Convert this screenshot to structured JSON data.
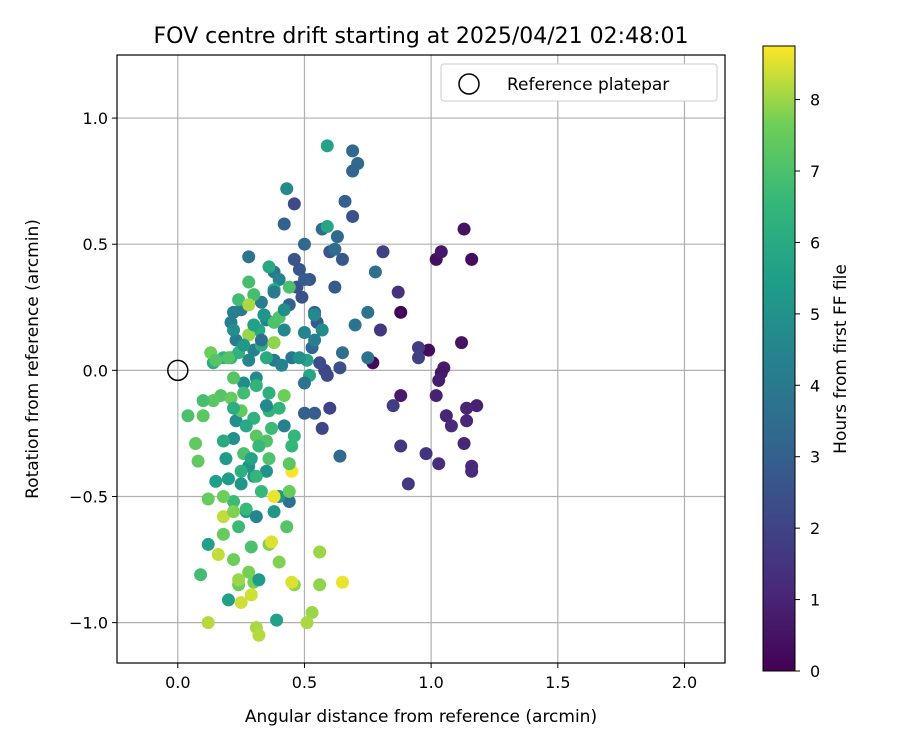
{
  "chart_data": {
    "type": "scatter",
    "title": "FOV centre drift starting at 2025/04/21 02:48:01",
    "xlabel": "Angular distance from reference (arcmin)",
    "ylabel": "Rotation from reference (arcmin)",
    "xlim": [
      -0.24,
      2.16
    ],
    "ylim": [
      -1.16,
      1.25
    ],
    "xticks": [
      0.0,
      0.5,
      1.0,
      1.5,
      2.0
    ],
    "xtick_labels": [
      "0.0",
      "0.5",
      "1.0",
      "1.5",
      "2.0"
    ],
    "yticks": [
      -1.0,
      -0.5,
      0.0,
      0.5,
      1.0
    ],
    "ytick_labels": [
      "−1.0",
      "−0.5",
      "0.0",
      "0.5",
      "1.0"
    ],
    "grid": true,
    "legend": {
      "placement": "top-right",
      "entries": [
        "Reference platepar"
      ]
    },
    "reference_point": {
      "x": 0.0,
      "y": 0.0,
      "label": "Reference platepar",
      "marker": "open-circle"
    },
    "colorbar": {
      "label": "Hours from first FF file",
      "colormap": "viridis",
      "range": [
        0,
        8.75
      ],
      "ticks": [
        0,
        1,
        2,
        3,
        4,
        5,
        6,
        7,
        8
      ],
      "tick_labels": [
        "0",
        "1",
        "2",
        "3",
        "4",
        "5",
        "6",
        "7",
        "8"
      ]
    },
    "points": [
      {
        "x": 0.88,
        "y": 0.23,
        "c": 0.1
      },
      {
        "x": 0.77,
        "y": 0.03,
        "c": 0.2
      },
      {
        "x": 1.16,
        "y": 0.44,
        "c": 0.3
      },
      {
        "x": 1.13,
        "y": 0.56,
        "c": 0.5
      },
      {
        "x": 1.02,
        "y": 0.44,
        "c": 0.4
      },
      {
        "x": 1.04,
        "y": 0.47,
        "c": 0.6
      },
      {
        "x": 0.99,
        "y": 0.08,
        "c": 0.3
      },
      {
        "x": 1.12,
        "y": 0.11,
        "c": 0.5
      },
      {
        "x": 1.05,
        "y": 0.01,
        "c": 0.7
      },
      {
        "x": 1.04,
        "y": -0.01,
        "c": 0.6
      },
      {
        "x": 1.03,
        "y": -0.04,
        "c": 0.8
      },
      {
        "x": 1.02,
        "y": -0.1,
        "c": 0.9
      },
      {
        "x": 0.88,
        "y": -0.1,
        "c": 0.7
      },
      {
        "x": 1.18,
        "y": -0.14,
        "c": 0.9
      },
      {
        "x": 1.14,
        "y": -0.15,
        "c": 1.0
      },
      {
        "x": 1.14,
        "y": -0.2,
        "c": 1.1
      },
      {
        "x": 1.06,
        "y": -0.18,
        "c": 1.0
      },
      {
        "x": 1.08,
        "y": -0.22,
        "c": 1.2
      },
      {
        "x": 1.13,
        "y": -0.29,
        "c": 1.0
      },
      {
        "x": 1.16,
        "y": -0.38,
        "c": 1.1
      },
      {
        "x": 1.16,
        "y": -0.4,
        "c": 1.2
      },
      {
        "x": 1.03,
        "y": -0.37,
        "c": 1.3
      },
      {
        "x": 0.98,
        "y": -0.33,
        "c": 1.5
      },
      {
        "x": 0.88,
        "y": -0.3,
        "c": 1.6
      },
      {
        "x": 0.91,
        "y": -0.45,
        "c": 1.7
      },
      {
        "x": 0.85,
        "y": -0.14,
        "c": 1.8
      },
      {
        "x": 0.95,
        "y": 0.09,
        "c": 1.8
      },
      {
        "x": 0.95,
        "y": 0.05,
        "c": 1.9
      },
      {
        "x": 0.87,
        "y": 0.31,
        "c": 1.4
      },
      {
        "x": 0.81,
        "y": 0.47,
        "c": 1.9
      },
      {
        "x": 0.8,
        "y": 0.16,
        "c": 1.6
      },
      {
        "x": 0.58,
        "y": 0.0,
        "c": 2.0
      },
      {
        "x": 0.59,
        "y": -0.02,
        "c": 2.2
      },
      {
        "x": 0.56,
        "y": 0.03,
        "c": 2.3
      },
      {
        "x": 0.57,
        "y": -0.23,
        "c": 2.1
      },
      {
        "x": 0.6,
        "y": -0.15,
        "c": 2.0
      },
      {
        "x": 0.64,
        "y": 0.01,
        "c": 2.4
      },
      {
        "x": 0.46,
        "y": 0.66,
        "c": 2.2
      },
      {
        "x": 0.49,
        "y": 0.29,
        "c": 2.5
      },
      {
        "x": 0.47,
        "y": 0.33,
        "c": 2.5
      },
      {
        "x": 0.48,
        "y": 0.4,
        "c": 2.6
      },
      {
        "x": 0.46,
        "y": 0.44,
        "c": 2.6
      },
      {
        "x": 0.6,
        "y": 0.47,
        "c": 2.6
      },
      {
        "x": 0.69,
        "y": 0.61,
        "c": 2.5
      },
      {
        "x": 0.65,
        "y": 0.44,
        "c": 2.7
      },
      {
        "x": 0.62,
        "y": 0.33,
        "c": 2.8
      },
      {
        "x": 0.55,
        "y": 0.19,
        "c": 2.8
      },
      {
        "x": 0.54,
        "y": 0.23,
        "c": 3.0
      },
      {
        "x": 0.52,
        "y": 0.36,
        "c": 2.7
      },
      {
        "x": 0.5,
        "y": 0.36,
        "c": 2.9
      },
      {
        "x": 0.54,
        "y": -0.17,
        "c": 2.9
      },
      {
        "x": 0.5,
        "y": -0.17,
        "c": 3.0
      },
      {
        "x": 0.53,
        "y": 0.09,
        "c": 3.2
      },
      {
        "x": 0.44,
        "y": 0.26,
        "c": 3.1
      },
      {
        "x": 0.42,
        "y": 0.58,
        "c": 3.0
      },
      {
        "x": 0.66,
        "y": 0.67,
        "c": 3.0
      },
      {
        "x": 0.69,
        "y": 0.87,
        "c": 3.3
      },
      {
        "x": 0.71,
        "y": 0.82,
        "c": 3.3
      },
      {
        "x": 0.69,
        "y": 0.79,
        "c": 3.2
      },
      {
        "x": 0.5,
        "y": 0.5,
        "c": 3.3
      },
      {
        "x": 0.57,
        "y": 0.56,
        "c": 3.5
      },
      {
        "x": 0.63,
        "y": 0.53,
        "c": 3.4
      },
      {
        "x": 0.64,
        "y": -0.34,
        "c": 3.4
      },
      {
        "x": 0.78,
        "y": 0.39,
        "c": 3.6
      },
      {
        "x": 0.75,
        "y": 0.23,
        "c": 3.7
      },
      {
        "x": 0.7,
        "y": 0.18,
        "c": 3.8
      },
      {
        "x": 0.62,
        "y": 0.48,
        "c": 3.5
      },
      {
        "x": 0.65,
        "y": 0.07,
        "c": 3.6
      },
      {
        "x": 0.75,
        "y": 0.05,
        "c": 3.7
      },
      {
        "x": 0.44,
        "y": -0.52,
        "c": 3.6
      },
      {
        "x": 0.28,
        "y": 0.45,
        "c": 3.8
      },
      {
        "x": 0.38,
        "y": 0.39,
        "c": 3.9
      },
      {
        "x": 0.45,
        "y": 0.05,
        "c": 3.9
      },
      {
        "x": 0.38,
        "y": 0.04,
        "c": 4.0
      },
      {
        "x": 0.23,
        "y": 0.12,
        "c": 4.1
      },
      {
        "x": 0.25,
        "y": 0.24,
        "c": 4.0
      },
      {
        "x": 0.22,
        "y": 0.23,
        "c": 4.2
      },
      {
        "x": 0.21,
        "y": 0.19,
        "c": 4.3
      },
      {
        "x": 0.33,
        "y": 0.27,
        "c": 4.2
      },
      {
        "x": 0.35,
        "y": 0.2,
        "c": 4.4
      },
      {
        "x": 0.3,
        "y": 0.08,
        "c": 4.3
      },
      {
        "x": 0.28,
        "y": 0.04,
        "c": 4.5
      },
      {
        "x": 0.4,
        "y": 0.36,
        "c": 4.4
      },
      {
        "x": 0.42,
        "y": 0.16,
        "c": 4.6
      },
      {
        "x": 0.5,
        "y": 0.15,
        "c": 4.5
      },
      {
        "x": 0.43,
        "y": 0.72,
        "c": 4.7
      },
      {
        "x": 0.54,
        "y": 0.22,
        "c": 4.6
      },
      {
        "x": 0.57,
        "y": 0.16,
        "c": 4.8
      },
      {
        "x": 0.31,
        "y": -0.03,
        "c": 4.7
      },
      {
        "x": 0.26,
        "y": -0.05,
        "c": 4.8
      },
      {
        "x": 0.23,
        "y": -0.2,
        "c": 4.9
      },
      {
        "x": 0.22,
        "y": -0.27,
        "c": 4.9
      },
      {
        "x": 0.28,
        "y": -0.38,
        "c": 5.0
      },
      {
        "x": 0.3,
        "y": -0.42,
        "c": 5.1
      },
      {
        "x": 0.35,
        "y": -0.4,
        "c": 5.0
      },
      {
        "x": 0.4,
        "y": -0.5,
        "c": 5.1
      },
      {
        "x": 0.38,
        "y": -0.56,
        "c": 5.2
      },
      {
        "x": 0.27,
        "y": -0.56,
        "c": 5.3
      },
      {
        "x": 0.25,
        "y": -0.45,
        "c": 5.2
      },
      {
        "x": 0.2,
        "y": -0.43,
        "c": 5.4
      },
      {
        "x": 0.19,
        "y": -0.35,
        "c": 5.3
      },
      {
        "x": 0.15,
        "y": -0.44,
        "c": 5.5
      },
      {
        "x": 0.12,
        "y": -0.69,
        "c": 5.5
      },
      {
        "x": 0.2,
        "y": -0.91,
        "c": 5.6
      },
      {
        "x": 0.39,
        "y": -0.99,
        "c": 5.6
      },
      {
        "x": 0.59,
        "y": 0.89,
        "c": 5.7
      },
      {
        "x": 0.59,
        "y": 0.57,
        "c": 5.8
      },
      {
        "x": 0.51,
        "y": 0.04,
        "c": 5.7
      },
      {
        "x": 0.52,
        "y": -0.02,
        "c": 5.8
      },
      {
        "x": 0.38,
        "y": 0.32,
        "c": 5.9
      },
      {
        "x": 0.36,
        "y": 0.41,
        "c": 5.9
      },
      {
        "x": 0.32,
        "y": 0.16,
        "c": 6.0
      },
      {
        "x": 0.33,
        "y": 0.1,
        "c": 6.1
      },
      {
        "x": 0.35,
        "y": 0.05,
        "c": 6.0
      },
      {
        "x": 0.14,
        "y": 0.03,
        "c": 6.1
      },
      {
        "x": 0.18,
        "y": 0.05,
        "c": 6.2
      },
      {
        "x": 0.21,
        "y": 0.05,
        "c": 6.2
      },
      {
        "x": 0.24,
        "y": 0.07,
        "c": 6.3
      },
      {
        "x": 0.3,
        "y": -0.19,
        "c": 6.3
      },
      {
        "x": 0.36,
        "y": -0.16,
        "c": 6.4
      },
      {
        "x": 0.4,
        "y": -0.15,
        "c": 6.4
      },
      {
        "x": 0.46,
        "y": -0.26,
        "c": 6.5
      },
      {
        "x": 0.45,
        "y": -0.3,
        "c": 6.5
      },
      {
        "x": 0.31,
        "y": -0.42,
        "c": 6.5
      },
      {
        "x": 0.33,
        "y": -0.48,
        "c": 6.6
      },
      {
        "x": 0.27,
        "y": -0.55,
        "c": 6.6
      },
      {
        "x": 0.24,
        "y": -0.62,
        "c": 6.7
      },
      {
        "x": 0.22,
        "y": -0.52,
        "c": 6.7
      },
      {
        "x": 0.09,
        "y": -0.81,
        "c": 6.8
      },
      {
        "x": 0.24,
        "y": 0.28,
        "c": 6.8
      },
      {
        "x": 0.28,
        "y": 0.35,
        "c": 6.9
      },
      {
        "x": 0.3,
        "y": 0.3,
        "c": 6.9
      },
      {
        "x": 0.44,
        "y": 0.33,
        "c": 7.0
      },
      {
        "x": 0.38,
        "y": 0.19,
        "c": 7.0
      },
      {
        "x": 0.4,
        "y": 0.21,
        "c": 7.1
      },
      {
        "x": 0.2,
        "y": 0.05,
        "c": 7.1
      },
      {
        "x": 0.22,
        "y": -0.03,
        "c": 7.2
      },
      {
        "x": 0.17,
        "y": -0.1,
        "c": 7.2
      },
      {
        "x": 0.14,
        "y": -0.12,
        "c": 7.3
      },
      {
        "x": 0.1,
        "y": -0.18,
        "c": 7.3
      },
      {
        "x": 0.07,
        "y": -0.29,
        "c": 7.4
      },
      {
        "x": 0.08,
        "y": -0.36,
        "c": 7.4
      },
      {
        "x": 0.12,
        "y": -0.51,
        "c": 7.5
      },
      {
        "x": 0.18,
        "y": -0.65,
        "c": 7.5
      },
      {
        "x": 0.22,
        "y": -0.75,
        "c": 7.6
      },
      {
        "x": 0.24,
        "y": -0.85,
        "c": 7.6
      },
      {
        "x": 0.28,
        "y": -0.8,
        "c": 7.7
      },
      {
        "x": 0.3,
        "y": -0.84,
        "c": 7.7
      },
      {
        "x": 0.36,
        "y": -0.69,
        "c": 7.8
      },
      {
        "x": 0.4,
        "y": -0.76,
        "c": 7.8
      },
      {
        "x": 0.46,
        "y": -0.85,
        "c": 7.9
      },
      {
        "x": 0.56,
        "y": -0.85,
        "c": 7.9
      },
      {
        "x": 0.56,
        "y": -0.72,
        "c": 8.0
      },
      {
        "x": 0.53,
        "y": -0.96,
        "c": 8.0
      },
      {
        "x": 0.51,
        "y": -1.0,
        "c": 8.1
      },
      {
        "x": 0.31,
        "y": -1.02,
        "c": 8.1
      },
      {
        "x": 0.32,
        "y": -1.05,
        "c": 8.2
      },
      {
        "x": 0.12,
        "y": -1.0,
        "c": 8.2
      },
      {
        "x": 0.16,
        "y": -0.73,
        "c": 8.3
      },
      {
        "x": 0.18,
        "y": -0.58,
        "c": 8.3
      },
      {
        "x": 0.25,
        "y": -0.92,
        "c": 8.4
      },
      {
        "x": 0.29,
        "y": -0.89,
        "c": 8.4
      },
      {
        "x": 0.37,
        "y": -0.68,
        "c": 8.5
      },
      {
        "x": 0.45,
        "y": -0.84,
        "c": 8.5
      },
      {
        "x": 0.65,
        "y": -0.84,
        "c": 8.6
      },
      {
        "x": 0.38,
        "y": -0.5,
        "c": 8.6
      },
      {
        "x": 0.45,
        "y": -0.4,
        "c": 8.7
      },
      {
        "x": 0.28,
        "y": 0.26,
        "c": 8.1
      },
      {
        "x": 0.28,
        "y": 0.14,
        "c": 8.0
      },
      {
        "x": 0.38,
        "y": 0.11,
        "c": 7.9
      },
      {
        "x": 0.13,
        "y": 0.07,
        "c": 7.6
      },
      {
        "x": 0.15,
        "y": 0.04,
        "c": 7.2
      },
      {
        "x": 0.21,
        "y": -0.11,
        "c": 7.5
      },
      {
        "x": 0.25,
        "y": -0.16,
        "c": 7.4
      },
      {
        "x": 0.31,
        "y": -0.26,
        "c": 7.3
      },
      {
        "x": 0.35,
        "y": -0.28,
        "c": 7.1
      },
      {
        "x": 0.26,
        "y": -0.33,
        "c": 7.0
      },
      {
        "x": 0.36,
        "y": -0.35,
        "c": 7.1
      },
      {
        "x": 0.44,
        "y": -0.37,
        "c": 7.3
      },
      {
        "x": 0.44,
        "y": -0.48,
        "c": 7.5
      },
      {
        "x": 0.18,
        "y": -0.5,
        "c": 7.6
      },
      {
        "x": 0.22,
        "y": -0.56,
        "c": 7.8
      },
      {
        "x": 0.43,
        "y": -0.62,
        "c": 7.2
      },
      {
        "x": 0.29,
        "y": -0.7,
        "c": 7.0
      },
      {
        "x": 0.24,
        "y": -0.83,
        "c": 8.0
      },
      {
        "x": 0.32,
        "y": -0.83,
        "c": 5.4
      },
      {
        "x": 0.04,
        "y": -0.18,
        "c": 7.0
      },
      {
        "x": 0.1,
        "y": -0.12,
        "c": 6.9
      },
      {
        "x": 0.18,
        "y": -0.28,
        "c": 6.0
      },
      {
        "x": 0.25,
        "y": -0.4,
        "c": 6.2
      },
      {
        "x": 0.32,
        "y": -0.3,
        "c": 6.6
      },
      {
        "x": 0.27,
        "y": -0.22,
        "c": 5.9
      },
      {
        "x": 0.22,
        "y": -0.15,
        "c": 6.1
      },
      {
        "x": 0.26,
        "y": -0.09,
        "c": 6.8
      },
      {
        "x": 0.31,
        "y": -0.06,
        "c": 6.4
      },
      {
        "x": 0.36,
        "y": -0.09,
        "c": 6.2
      },
      {
        "x": 0.42,
        "y": -0.1,
        "c": 7.6
      },
      {
        "x": 0.37,
        "y": -0.23,
        "c": 6.7
      },
      {
        "x": 0.3,
        "y": 0.18,
        "c": 5.6
      },
      {
        "x": 0.26,
        "y": 0.1,
        "c": 5.2
      },
      {
        "x": 0.22,
        "y": 0.16,
        "c": 4.9
      },
      {
        "x": 0.34,
        "y": 0.22,
        "c": 5.1
      },
      {
        "x": 0.42,
        "y": 0.24,
        "c": 4.8
      },
      {
        "x": 0.33,
        "y": 0.12,
        "c": 3.6
      },
      {
        "x": 0.38,
        "y": 0.31,
        "c": 4.1
      },
      {
        "x": 0.41,
        "y": 0.02,
        "c": 4.4
      },
      {
        "x": 0.48,
        "y": 0.05,
        "c": 5.0
      },
      {
        "x": 0.54,
        "y": 0.12,
        "c": 4.2
      },
      {
        "x": 0.5,
        "y": -0.05,
        "c": 3.8
      },
      {
        "x": 0.35,
        "y": -0.14,
        "c": 4.6
      },
      {
        "x": 0.29,
        "y": -0.35,
        "c": 5.7
      },
      {
        "x": 0.42,
        "y": -0.22,
        "c": 4.3
      },
      {
        "x": 0.31,
        "y": -0.58,
        "c": 4.5
      }
    ]
  }
}
